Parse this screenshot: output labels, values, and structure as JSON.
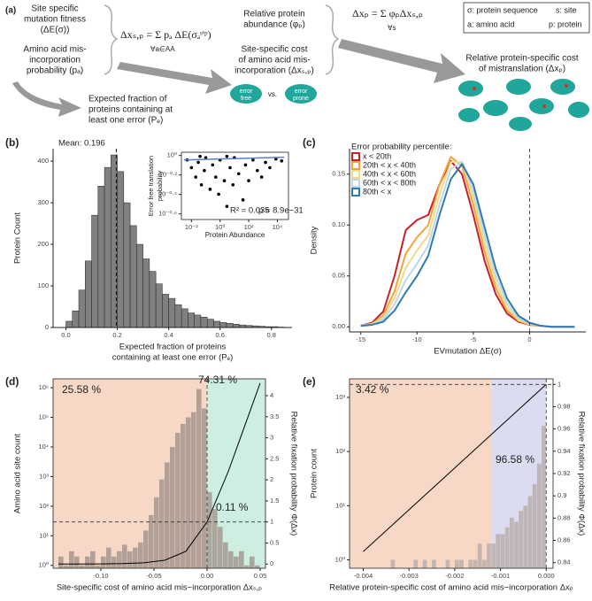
{
  "diagram": {
    "label": "(a)",
    "fitness": [
      "Site specific",
      "mutation fitness",
      "(ΔE(σ))"
    ],
    "misincorporation": [
      "Amino acid mis-",
      "incorporation",
      "probability (pₐ)"
    ],
    "expected": [
      "Expected fraction of",
      "proteins containing at",
      "least one error (Pₑ)"
    ],
    "formula_site": "Δxₛ,ₚ = Σ pₐ ΔE(σₐˢ'ᵖ)",
    "formula_site_under": "∀a∈AA",
    "abundance": [
      "Relative protein",
      "abundance (φₚ)"
    ],
    "site_cost": [
      "Site-specific cost",
      "of amino acid mis-",
      "incorporation (Δxₛ,ₚ)"
    ],
    "error_free": [
      "error",
      "free"
    ],
    "vs": "vs.",
    "error_prone": [
      "error",
      "prone"
    ],
    "formula_protein": "Δxₚ = Σ φₚΔxₛ,ₚ",
    "formula_protein_under": "∀s",
    "legend": [
      "σ: protein sequence",
      "s: site",
      "a: amino acid",
      "p: protein"
    ],
    "protein_cost": [
      "Relative protein-specific cost",
      "of mistranslation (Δxₚ)"
    ]
  },
  "chart_data": [
    {
      "type": "histogram",
      "label": "(b)",
      "color": "#808080",
      "ylabel": "Protein Count",
      "xlabel": [
        "Expected fraction of proteins",
        "containing at least one error (Pₑ)"
      ],
      "bins": [
        0,
        0.025,
        0.05,
        0.075,
        0.1,
        0.125,
        0.15,
        0.175,
        0.2,
        0.225,
        0.25,
        0.275,
        0.3,
        0.325,
        0.35,
        0.375,
        0.4,
        0.425,
        0.45,
        0.475,
        0.5,
        0.525,
        0.55,
        0.575,
        0.6,
        0.625,
        0.65,
        0.675,
        0.7,
        0.725,
        0.75,
        0.775,
        0.8,
        0.825,
        0.85
      ],
      "values": [
        15,
        40,
        90,
        160,
        270,
        340,
        385,
        415,
        375,
        300,
        245,
        200,
        165,
        135,
        105,
        80,
        70,
        55,
        45,
        35,
        30,
        25,
        20,
        15,
        12,
        10,
        8,
        6,
        5,
        4,
        3,
        2,
        2,
        1
      ],
      "mean": 0.196,
      "annotations": [
        {
          "text": "Mean: 0.196",
          "color": "#111"
        }
      ],
      "xlim": [
        -0.05,
        0.88
      ],
      "xticks": [
        {
          "value": 0,
          "label": "0.0"
        },
        0.2,
        0.4,
        0.6,
        0.8
      ],
      "ylim": [
        0,
        430
      ],
      "yticks": [
        0,
        100,
        200,
        300,
        400
      ]
    },
    {
      "type": "scatter",
      "frame": true,
      "color": "#000000",
      "xlog": true,
      "ylog": true,
      "ylabel": [
        "Error free translation",
        "probability"
      ],
      "xlabel": "Protein Abundance",
      "x": [
        0.005,
        0.01,
        0.02,
        0.03,
        0.05,
        0.08,
        0.1,
        0.2,
        0.3,
        0.5,
        0.8,
        1,
        2,
        3,
        5,
        8,
        10,
        20,
        40,
        60,
        100,
        200,
        400,
        800,
        1500,
        3000,
        8000,
        20000,
        0.04,
        3
      ],
      "y": [
        0.9,
        0.75,
        0.6,
        0.85,
        0.5,
        0.7,
        0.95,
        0.45,
        0.8,
        0.6,
        0.4,
        0.9,
        0.55,
        0.3,
        0.75,
        0.5,
        0.95,
        0.65,
        0.35,
        0.8,
        0.55,
        0.9,
        0.7,
        0.6,
        0.85,
        0.75,
        0.92,
        0.88,
        0.98,
        0.98
      ],
      "fit": {
        "x": [
          0.003,
          30000
        ],
        "y": [
          0.9,
          0.96
        ],
        "color": "#5b7fc7"
      },
      "annotations": [
        {
          "text": "R² = 0.035",
          "color": "#111"
        },
        {
          "text": "p = 8.9e−31",
          "color": "#111"
        }
      ],
      "xlim": [
        0.002,
        60000
      ],
      "xticks": [
        {
          "value": 0.01,
          "label": "10⁻²"
        },
        {
          "value": 1,
          "label": "10⁰"
        },
        {
          "value": 100,
          "label": "10²"
        },
        {
          "value": 10000,
          "label": "10⁴"
        }
      ],
      "ylim": [
        0.22,
        1.08
      ],
      "yticks": [
        {
          "value": 1,
          "label": "10⁰"
        },
        {
          "value": 0.631,
          "label": "10⁻⁰·²"
        },
        {
          "value": 0.398,
          "label": "10⁻⁰·⁴"
        },
        {
          "value": 0.251,
          "label": "10⁻⁰·⁶"
        }
      ]
    },
    {
      "type": "line",
      "label": "(c)",
      "ylabel": "Density",
      "xlabel": "EVmutation  ΔE(σ)",
      "legend_title": "Error probability percentile:",
      "vline": 0,
      "x": [
        -15,
        -14,
        -13,
        -12,
        -11,
        -10,
        -9,
        -8,
        -7,
        -6,
        -5,
        -4,
        -3,
        -2,
        -1,
        0,
        1,
        2,
        3,
        4
      ],
      "series": [
        {
          "name": "x < 20th",
          "color": "#c8202a",
          "values": [
            0.001,
            0.004,
            0.015,
            0.05,
            0.095,
            0.105,
            0.11,
            0.14,
            0.163,
            0.15,
            0.11,
            0.065,
            0.032,
            0.013,
            0.005,
            0.002,
            0.001,
            0,
            0,
            0
          ]
        },
        {
          "name": "20th < x < 40th",
          "color": "#f2a43a",
          "values": [
            0.001,
            0.003,
            0.011,
            0.035,
            0.072,
            0.088,
            0.1,
            0.14,
            0.167,
            0.158,
            0.12,
            0.074,
            0.038,
            0.016,
            0.006,
            0.002,
            0.001,
            0,
            0,
            0
          ]
        },
        {
          "name": "40th < x < 60th",
          "color": "#f3d98a",
          "values": [
            0.001,
            0.003,
            0.009,
            0.028,
            0.058,
            0.075,
            0.09,
            0.13,
            0.162,
            0.162,
            0.128,
            0.082,
            0.044,
            0.019,
            0.007,
            0.003,
            0.001,
            0,
            0,
            0
          ]
        },
        {
          "name": "60th < x < 80th",
          "color": "#b9d9ea",
          "values": [
            0.001,
            0.002,
            0.007,
            0.022,
            0.046,
            0.062,
            0.08,
            0.12,
            0.155,
            0.162,
            0.134,
            0.09,
            0.05,
            0.023,
            0.009,
            0.003,
            0.001,
            0,
            0,
            0
          ]
        },
        {
          "name": "80th < x",
          "color": "#2f7ab5",
          "values": [
            0.001,
            0.002,
            0.005,
            0.016,
            0.034,
            0.05,
            0.07,
            0.11,
            0.145,
            0.16,
            0.14,
            0.098,
            0.057,
            0.028,
            0.011,
            0.004,
            0.001,
            0,
            0,
            0
          ]
        }
      ],
      "xlim": [
        -16,
        5
      ],
      "xticks": [
        -15,
        -10,
        -5,
        0
      ],
      "ylim": [
        -0.005,
        0.175
      ],
      "yticks": [
        {
          "value": 0,
          "label": "0.00"
        },
        {
          "value": 0.05,
          "label": "0.05"
        },
        {
          "value": 0.1,
          "label": "0.10"
        },
        {
          "value": 0.15,
          "label": "0.15"
        }
      ]
    },
    {
      "type": "histogram",
      "label": "(d)",
      "frame": true,
      "color": "#9c8f88",
      "ylog": true,
      "ylabel": "Amino acid site count",
      "y2label": "Relative fixation probability Φ(Δx)",
      "xlabel": "Site-specific cost of amino acid mis−incorporation Δxₛ,ₚ",
      "regions": [
        {
          "to": 0,
          "color": "#f7d8c6"
        },
        {
          "from": 0,
          "color": "#cdeee0"
        }
      ],
      "vline": 0,
      "hline_y2": 1,
      "bins": [
        -0.14,
        -0.135,
        -0.13,
        -0.125,
        -0.12,
        -0.115,
        -0.11,
        -0.105,
        -0.1,
        -0.095,
        -0.09,
        -0.085,
        -0.08,
        -0.075,
        -0.07,
        -0.065,
        -0.06,
        -0.055,
        -0.05,
        -0.045,
        -0.04,
        -0.035,
        -0.03,
        -0.025,
        -0.02,
        -0.015,
        -0.01,
        -0.005,
        0,
        0.005,
        0.01,
        0.015,
        0.02,
        0.025,
        0.03,
        0.035,
        0.04,
        0.045,
        0.05
      ],
      "values": [
        2,
        1,
        3,
        2,
        1,
        2,
        3,
        1,
        2,
        4,
        2,
        3,
        5,
        3,
        4,
        6,
        15,
        50,
        200,
        800,
        3000,
        10000,
        30000,
        60000,
        100000,
        150000,
        900000,
        200000,
        300,
        80,
        20,
        6,
        3,
        2,
        3,
        1,
        2,
        1
      ],
      "curve": {
        "x": [
          -0.14,
          -0.1,
          -0.08,
          -0.06,
          -0.04,
          -0.02,
          0,
          0.01,
          0.02,
          0.03,
          0.04,
          0.05
        ],
        "y": [
          0,
          0.003,
          0.01,
          0.03,
          0.09,
          0.3,
          1,
          1.6,
          2.2,
          2.9,
          3.6,
          4.3
        ],
        "color": "#000000"
      },
      "annotations": [
        {
          "text": "25.58 %",
          "color": "#c0622b"
        },
        {
          "text": "74.31 %",
          "color": "#8a6fb5"
        },
        {
          "text": "0.11 %",
          "color": "#2aa56b"
        }
      ],
      "xlim": [
        -0.145,
        0.055
      ],
      "xticks": [
        {
          "value": -0.1,
          "label": "-0.10"
        },
        -0.05,
        {
          "value": 0,
          "label": "0.00"
        },
        0.05
      ],
      "ylim": [
        0.8,
        2000000
      ],
      "yticks": [
        {
          "value": 1,
          "label": "10⁰"
        },
        {
          "value": 10,
          "label": "10¹"
        },
        {
          "value": 100,
          "label": "10²"
        },
        {
          "value": 1000,
          "label": "10³"
        },
        {
          "value": 10000,
          "label": "10⁴"
        },
        {
          "value": 100000,
          "label": "10⁵"
        },
        {
          "value": 1000000,
          "label": "10⁶"
        }
      ],
      "y2lim": [
        -0.1,
        4.4
      ],
      "y2ticks": [
        0,
        0.5,
        1,
        1.5,
        2,
        2.5,
        3,
        3.5,
        4
      ]
    },
    {
      "type": "histogram",
      "label": "(e)",
      "frame": true,
      "color": "#b4a9a6",
      "ylog": true,
      "ylabel": "Protein count",
      "y2label": "Relative fixation probability Φ(Δx)",
      "xlabel": "Relative protein-specific cost of amino acid  mis−incorporation Δxₚ",
      "regions": [
        {
          "to": -0.0012,
          "color": "#f7d8c6"
        },
        {
          "from": -0.0012,
          "to": 0,
          "color": "#dcdcf0"
        }
      ],
      "vline": 0,
      "hline_y2": 1,
      "bins": [
        -0.0042,
        -0.0041,
        -0.004,
        -0.0039,
        -0.0038,
        -0.0037,
        -0.0036,
        -0.0035,
        -0.0034,
        -0.0033,
        -0.0032,
        -0.0031,
        -0.003,
        -0.0029,
        -0.0028,
        -0.0027,
        -0.0026,
        -0.0025,
        -0.0024,
        -0.0023,
        -0.0022,
        -0.0021,
        -0.002,
        -0.0019,
        -0.0018,
        -0.0017,
        -0.0016,
        -0.0015,
        -0.0014,
        -0.0013,
        -0.0012,
        -0.0011,
        -0.001,
        -0.0009,
        -0.0008,
        -0.0007,
        -0.0006,
        -0.0005,
        -0.0004,
        -0.0003,
        -0.0002,
        -0.0001,
        0
      ],
      "values": [
        0,
        0,
        0,
        0,
        0,
        0,
        0,
        0,
        1,
        0,
        0,
        0,
        0,
        1,
        0,
        1,
        0,
        1,
        0,
        0,
        1,
        0,
        1,
        1,
        0,
        1,
        1,
        2,
        1,
        2,
        2,
        3,
        3,
        4,
        6,
        5,
        8,
        10,
        15,
        25,
        60,
        300
      ],
      "curve": {
        "x": [
          -0.004,
          0
        ],
        "y": [
          0.85,
          1
        ],
        "color": "#000000"
      },
      "annotations": [
        {
          "text": "3.42 %",
          "color": "#c0622b"
        },
        {
          "text": "96.58 %",
          "color": "#8a6fb5"
        }
      ],
      "xlim": [
        -0.0043,
        0.00015
      ],
      "xticks": [
        -0.004,
        -0.003,
        -0.002,
        -0.001,
        {
          "value": 0,
          "label": "0.000"
        }
      ],
      "ylim": [
        0.7,
        2200
      ],
      "yticks": [
        {
          "value": 1,
          "label": "10⁰"
        },
        {
          "value": 10,
          "label": "10¹"
        },
        {
          "value": 100,
          "label": "10²"
        },
        {
          "value": 1000,
          "label": "10³"
        }
      ],
      "y2lim": [
        0.835,
        1.005
      ],
      "y2ticks": [
        0.84,
        0.86,
        0.88,
        0.9,
        0.92,
        0.94,
        0.96,
        0.98,
        1
      ]
    }
  ]
}
